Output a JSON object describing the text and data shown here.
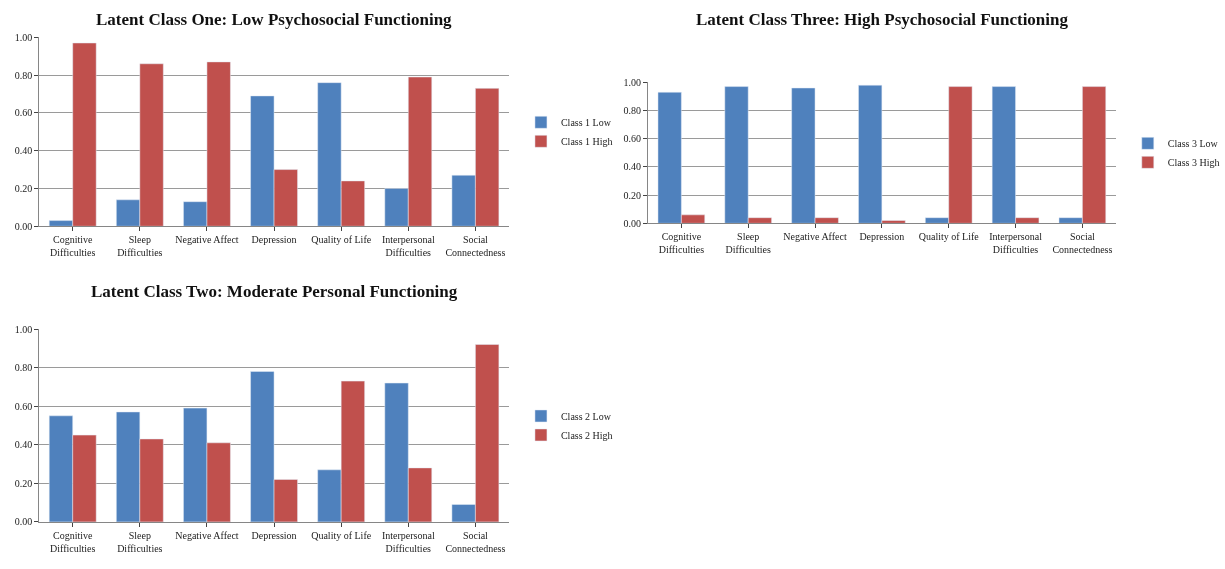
{
  "chart_data": [
    {
      "type": "bar",
      "title": "Latent Class One: Low Psychosocial Functioning",
      "categories": [
        "Cognitive Difficulties",
        "Sleep Difficulties",
        "Negative Affect",
        "Depression",
        "Quality of Life",
        "Interpersonal Difficulties",
        "Social Connectedness"
      ],
      "series": [
        {
          "name": "Class 1 Low",
          "color": "#4f81bd",
          "values": [
            0.03,
            0.14,
            0.13,
            0.69,
            0.76,
            0.2,
            0.27
          ]
        },
        {
          "name": "Class 1 High",
          "color": "#c0504d",
          "values": [
            0.97,
            0.86,
            0.87,
            0.3,
            0.24,
            0.79,
            0.73
          ]
        }
      ],
      "ylim": [
        0,
        1
      ],
      "yticks": [
        {
          "value": 0,
          "label": "0.00"
        },
        {
          "value": 0.2,
          "label": "0.20"
        },
        {
          "value": 0.4,
          "label": "0.40"
        },
        {
          "value": 0.6,
          "label": "0.60"
        },
        {
          "value": 0.8,
          "label": "0.80"
        },
        {
          "value": 1,
          "label": "1.00"
        }
      ],
      "grid": "y",
      "legend": "right"
    },
    {
      "type": "bar",
      "title": "Latent Class Three: High Psychosocial Functioning",
      "categories": [
        "Cognitive Difficulties",
        "Sleep Difficulties",
        "Negative Affect",
        "Depression",
        "Quality of Life",
        "Interpersonal Difficulties",
        "Social Connectedness"
      ],
      "series": [
        {
          "name": "Class 3 Low",
          "color": "#4f81bd",
          "values": [
            0.93,
            0.97,
            0.96,
            0.98,
            0.04,
            0.97,
            0.04
          ]
        },
        {
          "name": "Class 3 High",
          "color": "#c0504d",
          "values": [
            0.06,
            0.04,
            0.04,
            0.02,
            0.97,
            0.04,
            0.97
          ]
        }
      ],
      "ylim": [
        0,
        1
      ],
      "yticks": [
        {
          "value": 0,
          "label": "0.00"
        },
        {
          "value": 0.2,
          "label": "0.20"
        },
        {
          "value": 0.4,
          "label": "0.40"
        },
        {
          "value": 0.6,
          "label": "0.60"
        },
        {
          "value": 0.8,
          "label": "0.80"
        },
        {
          "value": 1,
          "label": "1.00"
        }
      ],
      "grid": "y",
      "legend": "right"
    },
    {
      "type": "bar",
      "title": "Latent Class Two: Moderate Personal Functioning",
      "categories": [
        "Cognitive Difficulties",
        "Sleep Difficulties",
        "Negative Affect",
        "Depression",
        "Quality of Life",
        "Interpersonal Difficulties",
        "Social Connectedness"
      ],
      "series": [
        {
          "name": "Class 2 Low",
          "color": "#4f81bd",
          "values": [
            0.55,
            0.57,
            0.59,
            0.78,
            0.27,
            0.72,
            0.09
          ]
        },
        {
          "name": "Class 2 High",
          "color": "#c0504d",
          "values": [
            0.45,
            0.43,
            0.41,
            0.22,
            0.73,
            0.28,
            0.92
          ]
        }
      ],
      "ylim": [
        0,
        1
      ],
      "yticks": [
        {
          "value": 0,
          "label": "0.00"
        },
        {
          "value": 0.2,
          "label": "0.20"
        },
        {
          "value": 0.4,
          "label": "0.40"
        },
        {
          "value": 0.6,
          "label": "0.60"
        },
        {
          "value": 0.8,
          "label": "0.80"
        },
        {
          "value": 1,
          "label": "1.00"
        }
      ],
      "grid": "y",
      "legend": "right"
    }
  ]
}
